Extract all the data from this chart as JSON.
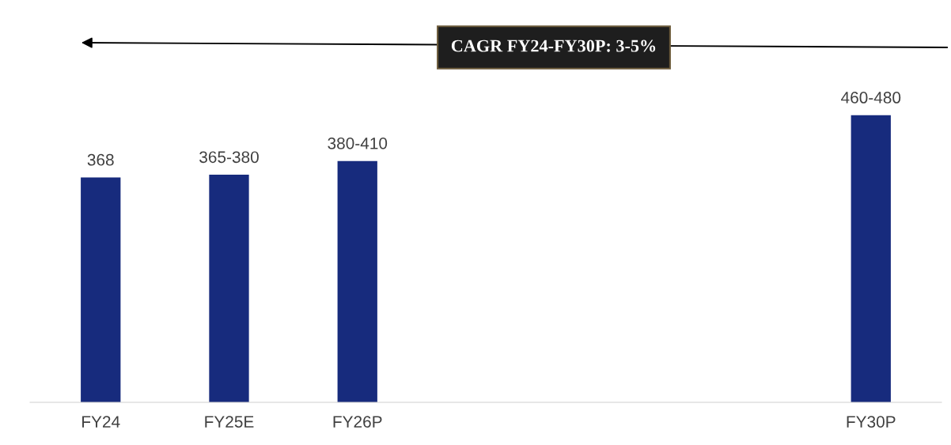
{
  "chart_data": {
    "type": "bar",
    "categories": [
      "FY24",
      "FY25E",
      "FY26P",
      null,
      null,
      null,
      "FY30P"
    ],
    "values": [
      368,
      372.5,
      395,
      null,
      null,
      null,
      470
    ],
    "value_labels": [
      "368",
      "365-380",
      "380-410",
      null,
      null,
      null,
      "460-480"
    ],
    "color": "#172b7d",
    "annotations": [
      "CAGR FY24-FY30P: 3-5%"
    ],
    "tick_labels": "x",
    "grid": false,
    "legend": false
  }
}
